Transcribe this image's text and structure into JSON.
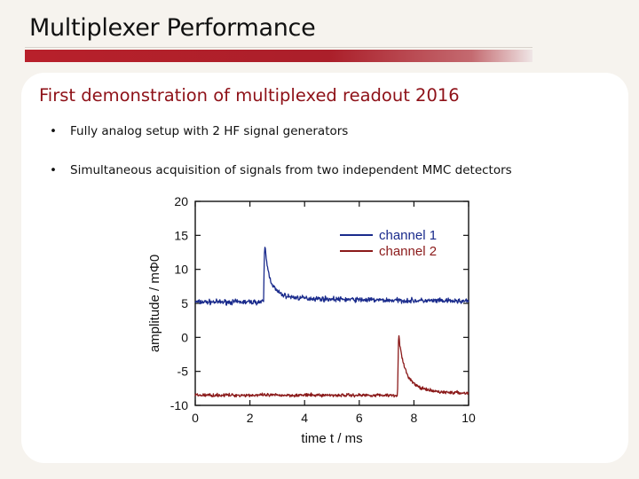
{
  "slide": {
    "title": "Multiplexer Performance",
    "subheading": "First demonstration of multiplexed readout 2016",
    "bullets": [
      "Fully analog setup with 2 HF signal generators",
      "Simultaneous acquisition of signals from two independent MMC detectors"
    ],
    "bullet_icon": "bullet-dot",
    "accent_color": "#b01f2a",
    "subheading_color": "#8e1118"
  },
  "chart_data": {
    "type": "line",
    "title": "",
    "xlabel": "time t / ms",
    "ylabel": "amplitude / mΦ0",
    "xlim": [
      0,
      10
    ],
    "ylim": [
      -10,
      20
    ],
    "xticks": [
      0,
      2,
      4,
      6,
      8,
      10
    ],
    "yticks": [
      -10,
      -5,
      0,
      5,
      10,
      15,
      20
    ],
    "grid": false,
    "legend_position": "top-right",
    "series": [
      {
        "name": "channel 1",
        "color": "#1a2b8c",
        "baseline": 5.2,
        "noise": 0.45,
        "pulse_start": 2.5,
        "pulse_peak": 15.5,
        "decay_ms": 0.25,
        "settle_level": 6.0,
        "settle_decay_ms": 4.0,
        "x": [
          0,
          2.45,
          2.5,
          2.6,
          2.8,
          3.0,
          3.4,
          4.0,
          5.0,
          6.0,
          8.0,
          10.0
        ],
        "y": [
          5.2,
          5.2,
          15.5,
          12.5,
          9.5,
          8.0,
          6.8,
          6.4,
          5.8,
          5.5,
          5.3,
          5.1
        ]
      },
      {
        "name": "channel 2",
        "color": "#8b1a1a",
        "baseline": -8.5,
        "noise": 0.3,
        "pulse_start": 7.4,
        "pulse_peak": 1.5,
        "decay_ms": 0.35,
        "settle_level": -7.8,
        "settle_decay_ms": 3.0,
        "x": [
          0,
          7.35,
          7.4,
          7.5,
          7.8,
          8.0,
          8.5,
          9.0,
          10.0
        ],
        "y": [
          -8.5,
          -8.5,
          1.5,
          -1.5,
          -5.5,
          -6.5,
          -7.5,
          -7.9,
          -8.2
        ]
      }
    ]
  }
}
